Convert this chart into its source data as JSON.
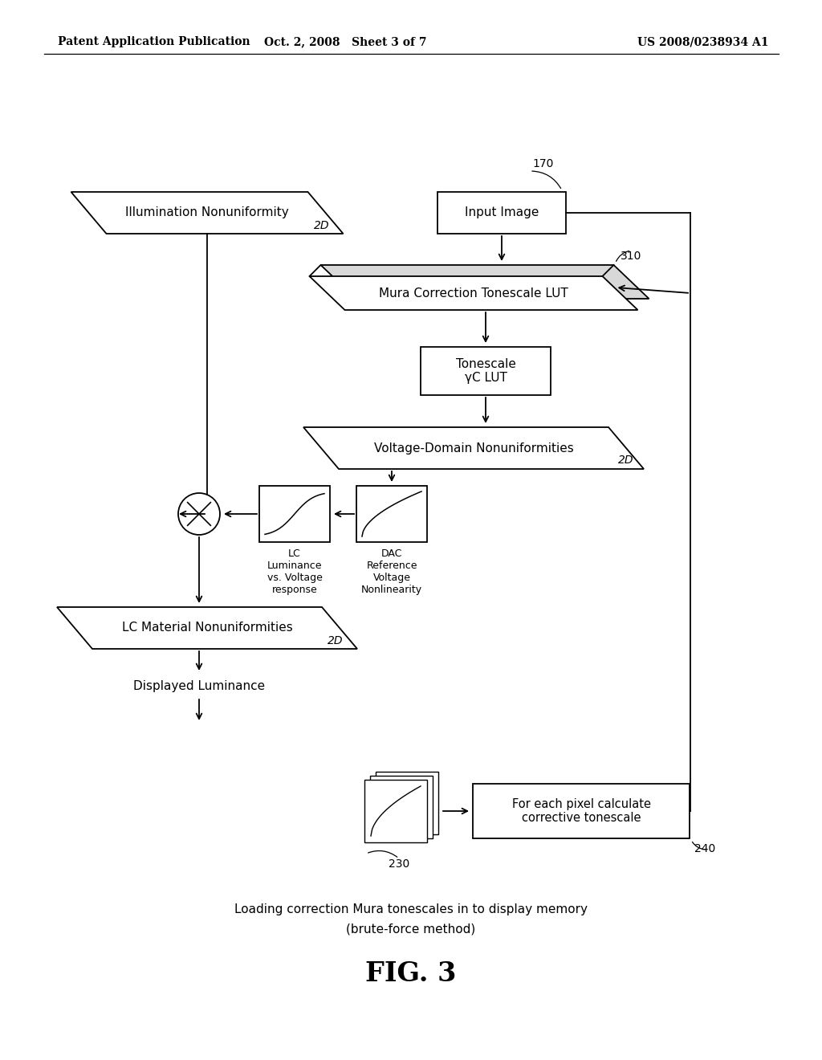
{
  "bg_color": "#ffffff",
  "header_left": "Patent Application Publication",
  "header_mid": "Oct. 2, 2008   Sheet 3 of 7",
  "header_right": "US 2008/0238934 A1",
  "fig_label": "FIG. 3",
  "caption_line1": "Loading correction Mura tonescales in to display memory",
  "caption_line2": "(brute-force method)"
}
